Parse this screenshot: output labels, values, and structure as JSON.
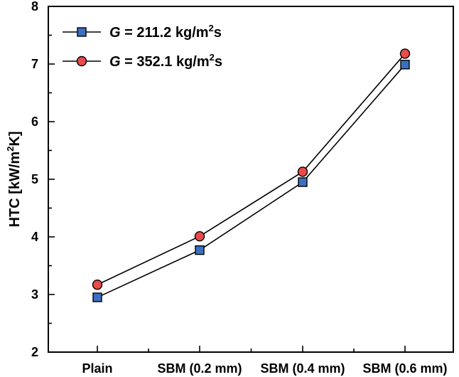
{
  "chart_data": {
    "type": "line",
    "title": "",
    "xlabel": "",
    "ylabel": {
      "prefix": "HTC [kW/m",
      "sup": "2",
      "suffix": "K]"
    },
    "categories": [
      "Plain",
      "SBM (0.2 mm)",
      "SBM (0.4 mm)",
      "SBM (0.6 mm)"
    ],
    "ylim": [
      2,
      8
    ],
    "yticks": [
      2,
      3,
      4,
      5,
      6,
      7,
      8
    ],
    "yticks_minor": [
      2.5,
      3.5,
      4.5,
      5.5,
      6.5,
      7.5
    ],
    "grid": false,
    "legend_position": "top-left",
    "series": [
      {
        "name": {
          "var": "G",
          "text": " = 211.2 kg/m",
          "sup": "2",
          "suffix": "s"
        },
        "marker": "square",
        "color": "#3d6fc0",
        "values": [
          2.95,
          3.77,
          4.95,
          6.99
        ]
      },
      {
        "name": {
          "var": "G",
          "text": " = 352.1 kg/m",
          "sup": "2",
          "suffix": "s"
        },
        "marker": "circle",
        "color": "#e84b4b",
        "values": [
          3.17,
          4.01,
          5.13,
          7.18
        ]
      }
    ]
  }
}
